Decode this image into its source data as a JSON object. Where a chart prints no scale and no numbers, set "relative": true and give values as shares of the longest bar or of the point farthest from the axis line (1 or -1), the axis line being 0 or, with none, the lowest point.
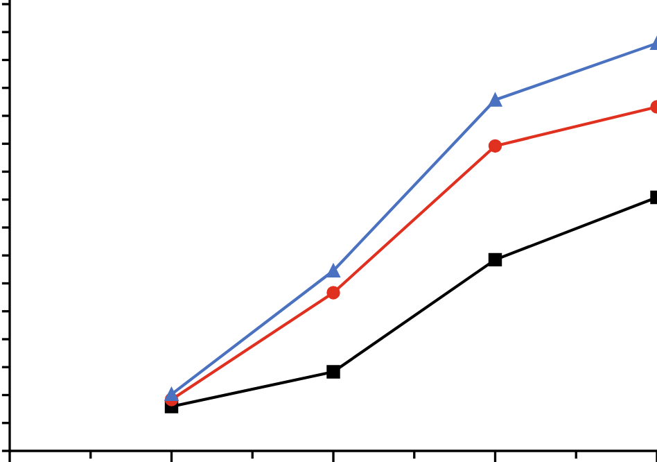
{
  "chart_data": {
    "type": "line",
    "relative": true,
    "categories": [
      null,
      null,
      null,
      null,
      null
    ],
    "grid": false,
    "legend": false,
    "series": [
      {
        "color": "#000000",
        "marker": "square",
        "values": [
          null,
          0.109,
          0.194,
          0.469,
          0.622
        ]
      },
      {
        "color": "#e03020",
        "marker": "circle",
        "values": [
          null,
          0.126,
          0.388,
          0.748,
          0.844
        ]
      },
      {
        "color": "#4a72c0",
        "marker": "triangle",
        "values": [
          null,
          0.139,
          0.442,
          0.861,
          1
        ]
      }
    ]
  }
}
